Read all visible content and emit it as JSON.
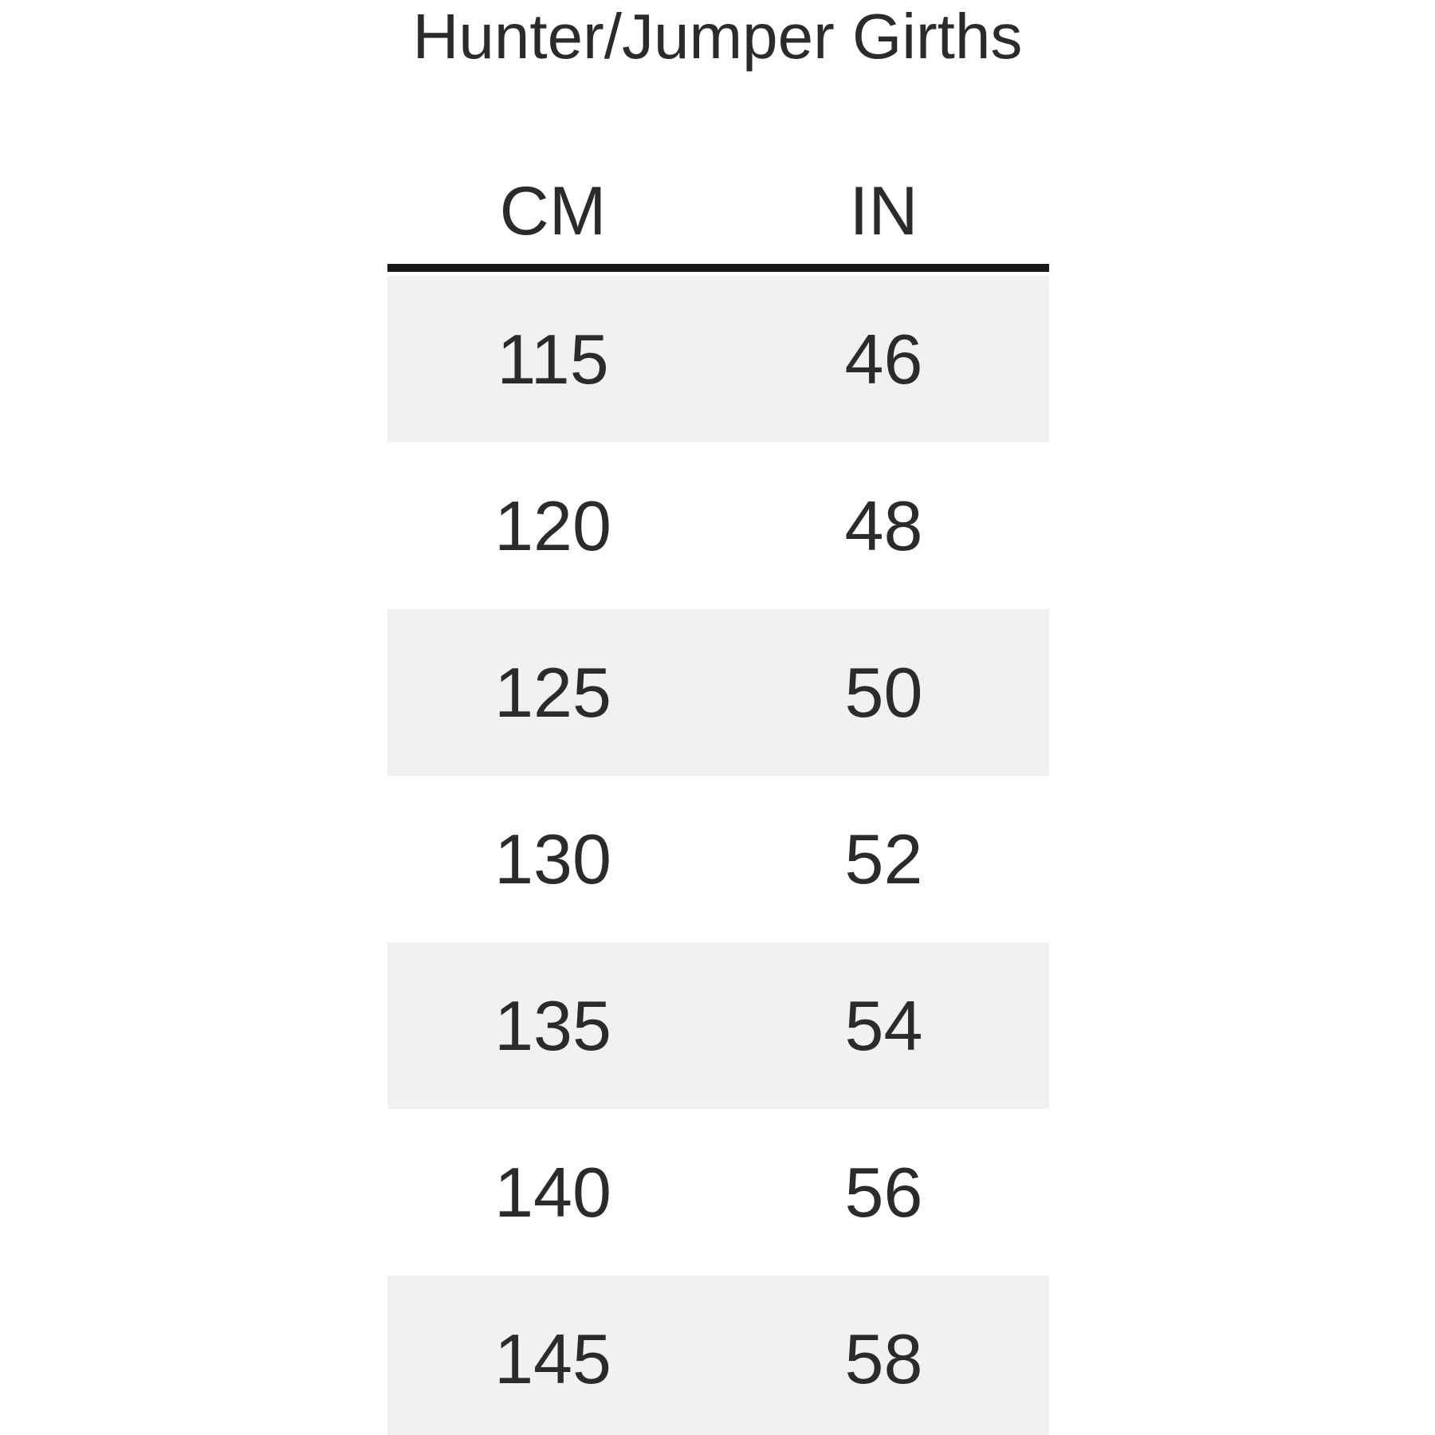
{
  "chart_data": {
    "type": "table",
    "title": "Hunter/Jumper Girths",
    "columns": [
      "CM",
      "IN"
    ],
    "rows": [
      [
        "115",
        "46"
      ],
      [
        "120",
        "48"
      ],
      [
        "125",
        "50"
      ],
      [
        "130",
        "52"
      ],
      [
        "135",
        "54"
      ],
      [
        "140",
        "56"
      ],
      [
        "145",
        "58"
      ]
    ],
    "layout": {
      "row_striping": "odd rows shaded, starting with first data row",
      "header_divider": "thick horizontal rule below column headers",
      "last_row_clipped": true
    },
    "colors": {
      "background": "#ffffff",
      "row_shade": "#f1f1f1",
      "text": "#2b2b2b",
      "divider": "#171717"
    }
  }
}
